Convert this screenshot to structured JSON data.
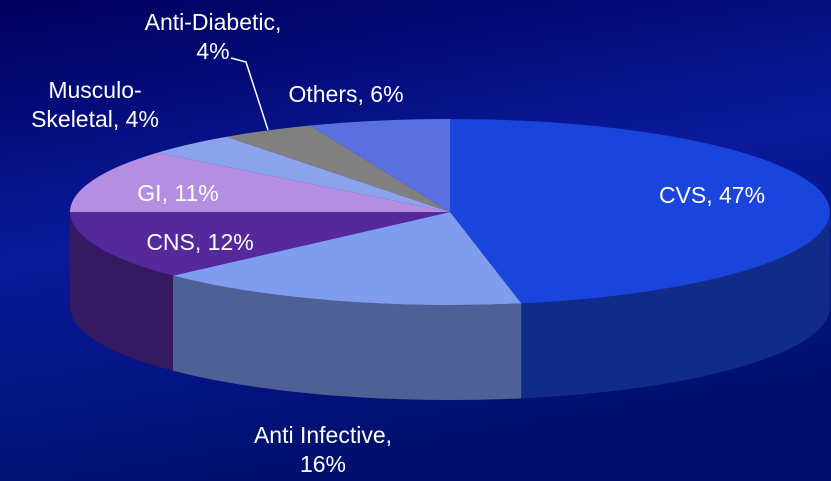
{
  "chart_data": {
    "type": "pie",
    "values": [
      47,
      16,
      12,
      11,
      4,
      4,
      6
    ],
    "value_labels": [
      [
        "CVS, 47%"
      ],
      [
        "Anti Infective,",
        "16%"
      ],
      [
        "CNS, 12%"
      ],
      [
        "GI, 11%"
      ],
      [
        "Musculo-",
        "Skeletal, 4%"
      ],
      [
        "Anti-Diabetic,",
        "4%"
      ],
      [
        "Others, 6%"
      ]
    ],
    "colors": [
      "#1a45dc",
      "#7f9cef",
      "#55289c",
      "#b48ee0",
      "#8aa3ea",
      "#808080",
      "#5a70e0"
    ]
  }
}
